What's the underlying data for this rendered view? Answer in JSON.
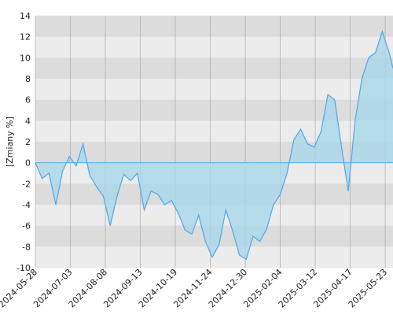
{
  "chart_data": {
    "type": "area",
    "y_label": "[Zmiany %]",
    "x": [
      "2024-05-28",
      "2024-06-04",
      "2024-06-11",
      "2024-06-18",
      "2024-06-25",
      "2024-07-02",
      "2024-07-09",
      "2024-07-16",
      "2024-07-23",
      "2024-07-30",
      "2024-08-06",
      "2024-08-13",
      "2024-08-20",
      "2024-08-27",
      "2024-09-03",
      "2024-09-10",
      "2024-09-17",
      "2024-09-24",
      "2024-10-01",
      "2024-10-08",
      "2024-10-15",
      "2024-10-22",
      "2024-10-29",
      "2024-11-05",
      "2024-11-12",
      "2024-11-19",
      "2024-11-26",
      "2024-12-03",
      "2024-12-10",
      "2024-12-17",
      "2024-12-24",
      "2024-12-31",
      "2025-01-07",
      "2025-01-14",
      "2025-01-21",
      "2025-01-28",
      "2025-02-04",
      "2025-02-11",
      "2025-02-18",
      "2025-02-25",
      "2025-03-04",
      "2025-03-11",
      "2025-03-18",
      "2025-03-25",
      "2025-04-01",
      "2025-04-08",
      "2025-04-15",
      "2025-04-22",
      "2025-04-29",
      "2025-05-06",
      "2025-05-13",
      "2025-05-20",
      "2025-05-27",
      "2025-05-31"
    ],
    "values": [
      0,
      -1.5,
      -1,
      -4,
      -0.8,
      0.6,
      -0.3,
      1.8,
      -1.2,
      -2.3,
      -3.2,
      -6,
      -3.2,
      -1.1,
      -1.7,
      -1,
      -4.5,
      -2.7,
      -3,
      -4,
      -3.6,
      -4.8,
      -6.4,
      -6.8,
      -5,
      -7.5,
      -9,
      -7.8,
      -4.5,
      -6.5,
      -8.8,
      -9.2,
      -7,
      -7.5,
      -6.3,
      -4,
      -3,
      -1,
      2.2,
      3.2,
      1.8,
      1.5,
      3,
      6.5,
      6,
      1.5,
      -2.7,
      4,
      8,
      10,
      10.5,
      12.5,
      10.5,
      9
    ],
    "line_color": "#5aaae8",
    "fill_color": "#a9d7ea",
    "xlim": [
      "2024-05-28",
      "2025-05-31"
    ],
    "xticks": [
      "2024-05-28",
      "2024-07-03",
      "2024-08-08",
      "2024-09-13",
      "2024-10-19",
      "2024-11-24",
      "2024-12-30",
      "2025-02-04",
      "2025-03-12",
      "2025-04-17",
      "2025-05-23"
    ],
    "ylim": [
      -10,
      14
    ],
    "yticks": [
      -10,
      -8,
      -6,
      -4,
      -2,
      0,
      2,
      4,
      6,
      8,
      10,
      12,
      14
    ],
    "grid": true
  }
}
